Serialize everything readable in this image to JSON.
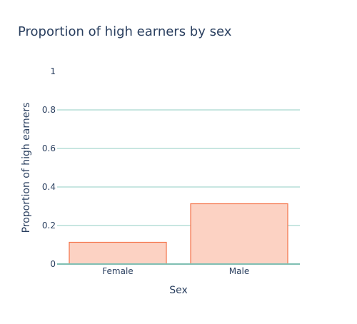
{
  "chart_data": {
    "type": "bar",
    "title": "Proportion of high earners by sex",
    "xlabel": "Sex",
    "ylabel": "Proportion of high earners",
    "categories": [
      "Female",
      "Male"
    ],
    "values": [
      0.113,
      0.313
    ],
    "ylim": [
      0,
      1
    ],
    "yticks": [
      0,
      0.2,
      0.4,
      0.6,
      0.8,
      1
    ],
    "ytick_labels": [
      "0",
      "0.2",
      "0.4",
      "0.6",
      "0.8",
      "1"
    ],
    "grid": true,
    "legend": "none",
    "colors": {
      "bar_fill": "#fcd2c3",
      "bar_stroke": "#f4734a",
      "grid": "#a6d8cf",
      "zero_line": "#7fbfb3",
      "title_text": "#2a3f5f",
      "tick_text": "#2a3f5f"
    }
  }
}
